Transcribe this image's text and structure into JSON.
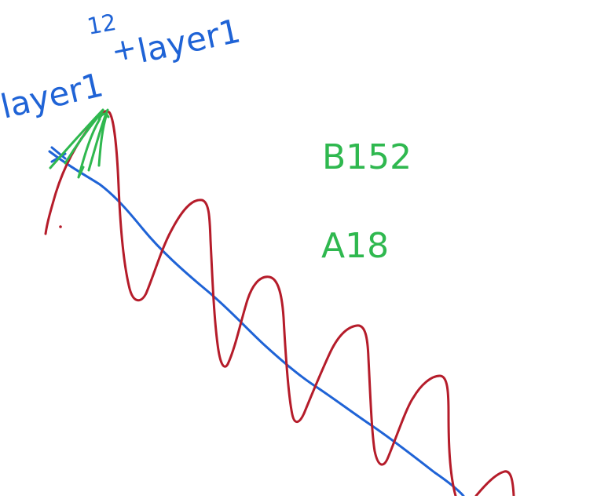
{
  "notes": {
    "top_number": "12",
    "left_expression": "layer1",
    "plus_sign": "+",
    "right_expression": "layer1",
    "value_b": "B152",
    "value_a": "A18"
  },
  "colors": {
    "blue_ink": "#1f63d6",
    "red_ink": "#b51c2a",
    "green_ink": "#2fb84f",
    "background": "#ffffff"
  }
}
